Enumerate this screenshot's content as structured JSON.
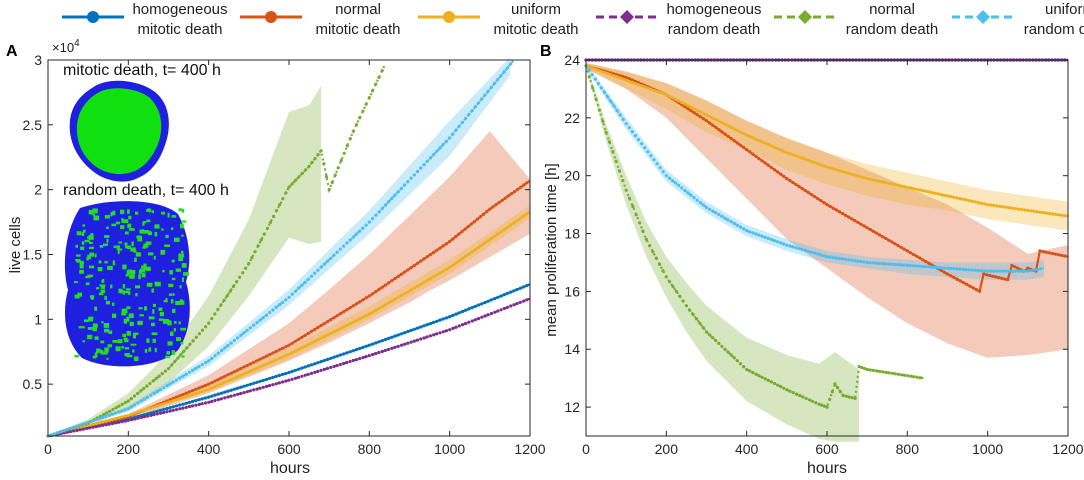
{
  "legend": [
    {
      "line1": "homogeneous",
      "line2": "mitotic death",
      "color": "#0072BD",
      "dash": false,
      "marker": "circle"
    },
    {
      "line1": "normal",
      "line2": "mitotic death",
      "color": "#D95319",
      "dash": false,
      "marker": "circle"
    },
    {
      "line1": "uniform",
      "line2": "mitotic death",
      "color": "#EDB120",
      "dash": false,
      "marker": "circle"
    },
    {
      "line1": "homogeneous",
      "line2": "random death",
      "color": "#7E2F8E",
      "dash": true,
      "marker": "diamond"
    },
    {
      "line1": "normal",
      "line2": "random death",
      "color": "#77AC30",
      "dash": true,
      "marker": "diamond"
    },
    {
      "line1": "uniform",
      "line2": "random death",
      "color": "#4DBEEE",
      "dash": true,
      "marker": "diamond"
    }
  ],
  "chart_data": [
    {
      "panel": "A",
      "type": "line",
      "xlabel": "hours",
      "ylabel": "live cells",
      "xlim": [
        0,
        1200
      ],
      "ylim": [
        1000,
        30000
      ],
      "exponent_label": "×10",
      "exponent_power": "4",
      "xticks": [
        0,
        200,
        400,
        600,
        800,
        1000,
        1200
      ],
      "yticks": [
        5000,
        10000,
        15000,
        20000,
        25000,
        30000
      ],
      "ytick_labels": [
        "0.5",
        "1",
        "1.5",
        "2",
        "2.5",
        "3"
      ],
      "inset_labels": [
        "mitotic death, t= 400 h",
        "random death, t= 400 h"
      ],
      "series": [
        {
          "name": "homogeneous mitotic death",
          "x": [
            0,
            200,
            400,
            600,
            800,
            1000,
            1200
          ],
          "y": [
            1000,
            2300,
            4000,
            5900,
            8000,
            10200,
            12700
          ]
        },
        {
          "name": "normal mitotic death",
          "x": [
            0,
            200,
            400,
            600,
            800,
            1000,
            1100,
            1200
          ],
          "y": [
            1000,
            2500,
            5000,
            8000,
            11800,
            16000,
            18500,
            20700
          ],
          "band_x": [
            0,
            200,
            400,
            600,
            700,
            800,
            900,
            950,
            1000,
            1100,
            1200
          ],
          "band_lo": [
            1000,
            2300,
            4300,
            6800,
            8200,
            9700,
            11300,
            12200,
            13000,
            14800,
            16600
          ],
          "band_hi": [
            1000,
            2700,
            5700,
            9700,
            12300,
            15000,
            18000,
            19500,
            21000,
            24500,
            20800
          ]
        },
        {
          "name": "uniform mitotic death",
          "x": [
            0,
            200,
            400,
            600,
            800,
            1000,
            1200
          ],
          "y": [
            1000,
            2600,
            4600,
            7300,
            10400,
            14000,
            18300
          ],
          "band_x": [
            0,
            200,
            400,
            600,
            800,
            1000,
            1200
          ],
          "band_lo": [
            1000,
            2500,
            4400,
            6900,
            10000,
            13500,
            17800
          ],
          "band_hi": [
            1000,
            2700,
            4900,
            7800,
            11000,
            14600,
            18800
          ]
        },
        {
          "name": "homogeneous random death",
          "x": [
            0,
            200,
            400,
            600,
            800,
            1000,
            1200
          ],
          "y": [
            1000,
            2200,
            3600,
            5300,
            7200,
            9200,
            11600
          ]
        },
        {
          "name": "normal random death",
          "x": [
            0,
            100,
            200,
            300,
            400,
            500,
            600,
            650,
            680,
            700,
            760,
            840
          ],
          "y": [
            1000,
            2000,
            3700,
            6200,
            9700,
            14300,
            20200,
            21800,
            23000,
            20000,
            24500,
            29700
          ],
          "band_x": [
            0,
            100,
            200,
            300,
            400,
            500,
            600,
            650,
            680
          ],
          "band_lo": [
            1000,
            1700,
            3100,
            5100,
            7900,
            11800,
            16300,
            15800,
            16000
          ],
          "band_hi": [
            1000,
            2300,
            4300,
            7400,
            11800,
            17700,
            26000,
            26500,
            28000
          ]
        },
        {
          "name": "uniform random death",
          "x": [
            0,
            200,
            400,
            600,
            800,
            1000,
            1160
          ],
          "y": [
            1000,
            3100,
            6800,
            11700,
            17500,
            24000,
            30000
          ],
          "band_x": [
            0,
            200,
            400,
            600,
            800,
            1000,
            1150
          ],
          "band_lo": [
            1000,
            2900,
            6400,
            11100,
            16600,
            22600,
            28800
          ],
          "band_hi": [
            1000,
            3300,
            7200,
            12300,
            18400,
            25300,
            30200
          ]
        }
      ]
    },
    {
      "panel": "B",
      "type": "line",
      "xlabel": "hours",
      "ylabel": "mean proliferation time [h]",
      "xlim": [
        0,
        1200
      ],
      "ylim": [
        11,
        24
      ],
      "xticks": [
        0,
        200,
        400,
        600,
        800,
        1000,
        1200
      ],
      "yticks": [
        12,
        14,
        16,
        18,
        20,
        22,
        24
      ],
      "series": [
        {
          "name": "homogeneous mitotic death",
          "x": [
            0,
            1200
          ],
          "y": [
            24,
            24
          ]
        },
        {
          "name": "normal mitotic death",
          "x": [
            0,
            100,
            200,
            300,
            400,
            500,
            600,
            700,
            800,
            900,
            980,
            990,
            1050,
            1060,
            1090,
            1100,
            1120,
            1130,
            1200
          ],
          "y": [
            23.8,
            23.4,
            22.8,
            21.9,
            20.9,
            19.9,
            19.0,
            18.2,
            17.4,
            16.6,
            16.0,
            16.6,
            16.4,
            16.9,
            16.7,
            16.8,
            16.7,
            17.4,
            17.2
          ],
          "band_x": [
            0,
            100,
            200,
            300,
            400,
            500,
            600,
            700,
            800,
            900,
            1000,
            1100,
            1200
          ],
          "band_lo": [
            23.7,
            23.0,
            22.0,
            20.6,
            19.2,
            17.8,
            16.8,
            15.8,
            14.9,
            14.2,
            13.7,
            13.8,
            14.0
          ],
          "band_hi": [
            23.9,
            23.6,
            23.2,
            22.6,
            21.9,
            21.3,
            20.8,
            20.2,
            19.6,
            19.0,
            18.2,
            17.3,
            17.6
          ]
        },
        {
          "name": "uniform mitotic death",
          "x": [
            0,
            100,
            200,
            300,
            400,
            500,
            600,
            700,
            800,
            900,
            1000,
            1100,
            1200
          ],
          "y": [
            23.8,
            23.3,
            22.8,
            22.1,
            21.4,
            20.8,
            20.3,
            19.9,
            19.6,
            19.3,
            19.0,
            18.8,
            18.6
          ],
          "band_x": [
            0,
            100,
            200,
            300,
            400,
            500,
            600,
            700,
            800,
            900,
            1000,
            1100,
            1200
          ],
          "band_lo": [
            23.7,
            23.0,
            22.3,
            21.5,
            20.9,
            20.2,
            19.7,
            19.3,
            19.0,
            18.8,
            18.5,
            18.3,
            18.1
          ],
          "band_hi": [
            23.9,
            23.6,
            23.2,
            22.6,
            21.9,
            21.3,
            20.8,
            20.4,
            20.1,
            19.8,
            19.5,
            19.3,
            19.1
          ]
        },
        {
          "name": "homogeneous random death",
          "x": [
            0,
            1200
          ],
          "y": [
            24,
            24
          ]
        },
        {
          "name": "normal random death",
          "x": [
            0,
            50,
            100,
            150,
            200,
            250,
            300,
            400,
            500,
            580,
            600,
            620,
            640,
            670,
            680,
            700,
            840
          ],
          "y": [
            23.8,
            21.5,
            19.5,
            17.8,
            16.5,
            15.5,
            14.6,
            13.3,
            12.6,
            12.1,
            12.0,
            12.8,
            12.4,
            12.3,
            13.4,
            13.3,
            13.0
          ],
          "band_x": [
            0,
            50,
            100,
            150,
            200,
            250,
            300,
            400,
            500,
            580,
            620,
            680
          ],
          "band_lo": [
            23.8,
            21.2,
            19.0,
            17.2,
            15.8,
            14.6,
            13.6,
            12.2,
            11.4,
            10.9,
            10.8,
            10.8
          ],
          "band_hi": [
            23.9,
            21.8,
            20.0,
            18.4,
            17.2,
            16.3,
            15.5,
            14.4,
            13.8,
            13.5,
            13.9,
            13.3
          ]
        },
        {
          "name": "uniform random death",
          "x": [
            0,
            100,
            200,
            300,
            400,
            500,
            600,
            700,
            800,
            900,
            1000,
            1100,
            1140
          ],
          "y": [
            23.8,
            21.8,
            20.0,
            18.9,
            18.1,
            17.6,
            17.2,
            17.0,
            16.9,
            16.8,
            16.7,
            16.7,
            16.8
          ],
          "band_x": [
            0,
            100,
            200,
            300,
            400,
            500,
            600,
            700,
            800,
            900,
            1000,
            1100,
            1140
          ],
          "band_lo": [
            23.7,
            21.6,
            19.8,
            18.7,
            17.9,
            17.4,
            17.0,
            16.8,
            16.6,
            16.5,
            16.4,
            16.4,
            16.5
          ],
          "band_hi": [
            23.9,
            22.0,
            20.2,
            19.1,
            18.3,
            17.8,
            17.4,
            17.2,
            17.1,
            17.0,
            17.0,
            17.0,
            17.1
          ]
        }
      ]
    }
  ]
}
